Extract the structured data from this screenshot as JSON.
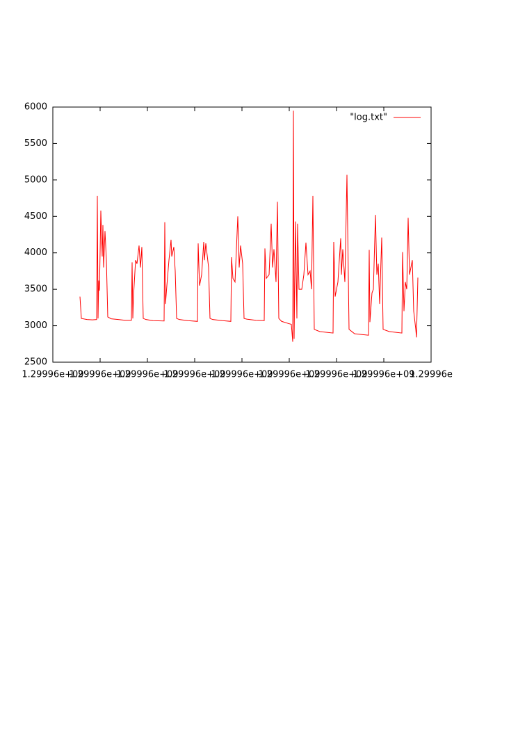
{
  "chart_data": {
    "type": "line",
    "legend": "top-right",
    "xlim": [
      1299960000,
      1299964352
    ],
    "xticks": [
      {
        "value": 1299960000,
        "label": "1.29996e+09"
      },
      {
        "value": 1299960544,
        "label": "1.29996e+09"
      },
      {
        "value": 1299961088,
        "label": "1.29996e+09"
      },
      {
        "value": 1299961632,
        "label": "1.29996e+09"
      },
      {
        "value": 1299962176,
        "label": "1.29996e+09"
      },
      {
        "value": 1299962720,
        "label": "1.29996e+09"
      },
      {
        "value": 1299963264,
        "label": "1.29996e+09"
      },
      {
        "value": 1299963808,
        "label": "1.29996e+09"
      },
      {
        "value": 1299964352,
        "label": "1.29996e"
      }
    ],
    "ylim": [
      2500,
      6000
    ],
    "yticks": [
      2500,
      3000,
      3500,
      4000,
      4500,
      5000,
      5500,
      6000
    ],
    "x": [
      1299960312,
      1299960328,
      1299960392,
      1299960456,
      1299960504,
      1299960512,
      1299960520,
      1299960528,
      1299960536,
      1299960552,
      1299960568,
      1299960576,
      1299960584,
      1299960600,
      1299960616,
      1299960632,
      1299960672,
      1299960752,
      1299960832,
      1299960904,
      1299960912,
      1299960920,
      1299960928,
      1299960952,
      1299960968,
      1299960992,
      1299961008,
      1299961024,
      1299961040,
      1299961072,
      1299961152,
      1299961280,
      1299961288,
      1299961296,
      1299961312,
      1299961336,
      1299961360,
      1299961368,
      1299961392,
      1299961408,
      1299961424,
      1299961456,
      1299961552,
      1299961664,
      1299961672,
      1299961688,
      1299961712,
      1299961736,
      1299961744,
      1299961760,
      1299961792,
      1299961808,
      1299961840,
      1299961952,
      1299962048,
      1299962056,
      1299962072,
      1299962096,
      1299962128,
      1299962144,
      1299962160,
      1299962184,
      1299962200,
      1299962232,
      1299962336,
      1299962432,
      1299962440,
      1299962456,
      1299962488,
      1299962512,
      1299962528,
      1299962544,
      1299962568,
      1299962584,
      1299962600,
      1299962632,
      1299962712,
      1299962744,
      1299962760,
      1299962768,
      1299962776,
      1299962792,
      1299962808,
      1299962816,
      1299962832,
      1299962864,
      1299962888,
      1299962912,
      1299962936,
      1299962960,
      1299962976,
      1299962992,
      1299963008,
      1299963072,
      1299963224,
      1299963232,
      1299963248,
      1299963280,
      1299963312,
      1299963320,
      1299963336,
      1299963360,
      1299963384,
      1299963408,
      1299963472,
      1299963632,
      1299963640,
      1299963648,
      1299963672,
      1299963688,
      1299963712,
      1299963728,
      1299963744,
      1299963760,
      1299963784,
      1299963800,
      1299963872,
      1299964016,
      1299964024,
      1299964040,
      1299964056,
      1299964072,
      1299964088,
      1299964104,
      1299964136,
      1299964152,
      1299964176,
      1299964184,
      1299964200
    ],
    "series": [
      {
        "name": "\"log.txt\"",
        "color": "#ff0000",
        "values": [
          3400,
          3100,
          3085,
          3080,
          3085,
          4780,
          3100,
          3620,
          3480,
          4580,
          3950,
          4380,
          3800,
          4300,
          3900,
          3120,
          3095,
          3085,
          3075,
          3075,
          3870,
          3100,
          3400,
          3900,
          3850,
          4100,
          3800,
          4080,
          3100,
          3085,
          3070,
          3065,
          4420,
          3300,
          3550,
          3900,
          4180,
          3950,
          4080,
          3750,
          3100,
          3085,
          3070,
          3060,
          4130,
          3550,
          3700,
          4150,
          3900,
          4130,
          3800,
          3100,
          3085,
          3070,
          3060,
          3940,
          3650,
          3600,
          4500,
          3800,
          4100,
          3850,
          3100,
          3090,
          3075,
          3070,
          4060,
          3650,
          3700,
          4400,
          3800,
          4050,
          3600,
          4700,
          3100,
          3060,
          3030,
          3020,
          2780,
          5950,
          2820,
          4430,
          3100,
          4400,
          3500,
          3500,
          3700,
          4140,
          3700,
          3750,
          3500,
          4780,
          2950,
          2920,
          2900,
          4150,
          3400,
          3600,
          4200,
          3700,
          4050,
          3600,
          5070,
          2950,
          2890,
          2870,
          4040,
          3050,
          3450,
          3500,
          4520,
          3700,
          3850,
          3300,
          4210,
          2950,
          2920,
          2900,
          4010,
          3200,
          3600,
          3500,
          4480,
          3700,
          3900,
          3200,
          2950,
          2840,
          3660
        ]
      }
    ]
  }
}
